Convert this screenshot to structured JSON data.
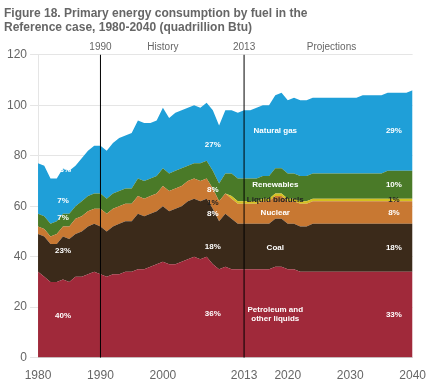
{
  "chart_data": {
    "type": "area",
    "stacked": true,
    "title": [
      "Figure 18. Primary energy consumption by fuel in the",
      "Reference case, 1980-2040 (quadrillion Btu)"
    ],
    "x": [
      1980,
      1981,
      1982,
      1983,
      1984,
      1985,
      1986,
      1987,
      1988,
      1989,
      1990,
      1991,
      1992,
      1993,
      1994,
      1995,
      1996,
      1997,
      1998,
      1999,
      2000,
      2001,
      2002,
      2003,
      2004,
      2005,
      2006,
      2007,
      2008,
      2009,
      2010,
      2011,
      2012,
      2013,
      2014,
      2015,
      2016,
      2017,
      2018,
      2019,
      2020,
      2021,
      2022,
      2023,
      2024,
      2025,
      2026,
      2027,
      2028,
      2029,
      2030,
      2031,
      2032,
      2033,
      2034,
      2035,
      2036,
      2037,
      2038,
      2039,
      2040
    ],
    "xlim": [
      1980,
      2040
    ],
    "xticks": [
      1980,
      1990,
      2000,
      2013,
      2020,
      2030,
      2040
    ],
    "ylim": [
      0,
      120
    ],
    "yticks": [
      0,
      20,
      40,
      60,
      80,
      100,
      120
    ],
    "grid": true,
    "annotations": [
      {
        "text": "1990",
        "x": 1990,
        "line": true
      },
      {
        "text": "History",
        "x": 2000
      },
      {
        "text": "2013",
        "x": 2013,
        "line": true
      },
      {
        "text": "Projections",
        "x": 2027
      }
    ],
    "share_years": [
      1990,
      2013,
      2040
    ],
    "series": [
      {
        "name": "Petroleum and\nother liquids",
        "color": "#A0293A",
        "values": [
          34,
          32,
          30,
          30,
          31,
          30,
          32,
          32,
          33,
          34,
          33,
          32,
          33,
          33,
          34,
          34,
          35,
          35,
          36,
          37,
          38,
          37,
          37,
          38,
          39,
          40,
          39,
          40,
          37,
          35,
          36,
          35,
          35,
          35,
          35,
          35,
          35,
          35,
          36,
          36,
          35,
          35,
          34,
          34,
          34,
          34,
          34,
          34,
          34,
          34,
          34,
          34,
          34,
          34,
          34,
          34,
          34,
          34,
          34,
          34,
          34
        ],
        "shares": [
          40,
          36,
          33
        ],
        "share_labels": [
          "40%",
          "36%",
          "33%"
        ]
      },
      {
        "name": "Coal",
        "color": "#3B2A1A",
        "values": [
          15,
          16,
          15,
          15,
          17,
          17,
          17,
          18,
          19,
          19,
          19,
          18,
          19,
          20,
          20,
          20,
          22,
          21,
          21,
          21,
          22,
          21,
          22,
          22,
          23,
          23,
          23,
          23,
          22,
          19,
          21,
          20,
          18,
          18,
          18,
          18,
          18,
          18,
          19,
          19,
          18,
          18,
          18,
          18,
          19,
          19,
          19,
          19,
          19,
          19,
          19,
          19,
          19,
          19,
          19,
          19,
          19,
          19,
          19,
          19,
          19
        ],
        "shares": [
          23,
          18,
          18
        ],
        "share_labels": [
          "23%",
          "18%",
          "18%"
        ]
      },
      {
        "name": "Nuclear",
        "color": "#C87832",
        "values": [
          3,
          3,
          3,
          4,
          4,
          5,
          6,
          6,
          6,
          6,
          7,
          7,
          7,
          7,
          7,
          7,
          7,
          7,
          7,
          7,
          8,
          8,
          8,
          8,
          8,
          8,
          8,
          8,
          8,
          8,
          8,
          8,
          8,
          8,
          8,
          8,
          9,
          9,
          9,
          9,
          9,
          9,
          9,
          9,
          9,
          9,
          9,
          9,
          9,
          9,
          9,
          9,
          9,
          9,
          9,
          9,
          9,
          9,
          9,
          9,
          9
        ],
        "shares": [
          7,
          8,
          8
        ],
        "share_labels": [
          "7%",
          "8%",
          "8%"
        ]
      },
      {
        "name": "Liquid biofuels",
        "color": "#D4C020",
        "values": [
          0,
          0,
          0,
          0,
          0,
          0,
          0,
          0,
          0,
          0,
          0,
          0,
          0,
          0,
          0,
          0,
          0,
          0,
          0,
          0,
          0,
          0,
          0,
          0,
          0,
          0,
          0,
          0,
          0,
          0,
          0,
          1,
          1,
          1,
          1,
          1,
          1,
          1,
          1,
          1,
          1,
          1,
          1,
          1,
          1,
          1,
          1,
          1,
          1,
          1,
          1,
          1,
          1,
          1,
          1,
          1,
          1,
          1,
          1,
          1,
          1
        ],
        "shares": [
          null,
          1,
          1
        ],
        "share_labels": [
          null,
          "1%",
          "1%"
        ]
      },
      {
        "name": "Renewables",
        "color": "#4A7A28",
        "values": [
          5,
          5,
          5,
          5,
          5,
          5,
          5,
          6,
          6,
          6,
          6,
          6,
          6,
          6,
          6,
          6,
          7,
          7,
          7,
          7,
          7,
          7,
          7,
          7,
          6,
          6,
          7,
          7,
          7,
          7,
          8,
          9,
          9,
          9,
          9,
          9,
          9,
          9,
          10,
          10,
          10,
          10,
          10,
          10,
          10,
          10,
          10,
          10,
          10,
          10,
          10,
          10,
          10,
          10,
          10,
          10,
          11,
          11,
          11,
          11,
          11
        ],
        "shares": [
          7,
          8,
          10
        ],
        "share_labels": [
          "7%",
          "8%",
          "10%"
        ]
      },
      {
        "name": "Natural gas",
        "color": "#1F9FD8",
        "values": [
          20,
          20,
          18,
          17,
          18,
          17,
          16,
          17,
          18,
          19,
          19,
          19,
          20,
          21,
          21,
          22,
          23,
          23,
          22,
          22,
          24,
          22,
          23,
          23,
          23,
          23,
          22,
          23,
          24,
          23,
          25,
          25,
          26,
          27,
          27,
          28,
          28,
          28,
          29,
          30,
          29,
          30,
          30,
          30,
          30,
          30,
          30,
          30,
          30,
          30,
          30,
          30,
          31,
          31,
          31,
          31,
          31,
          31,
          31,
          31,
          32
        ],
        "shares": [
          23,
          27,
          29
        ],
        "share_labels": [
          "23%",
          "27%",
          "29%"
        ]
      }
    ]
  }
}
